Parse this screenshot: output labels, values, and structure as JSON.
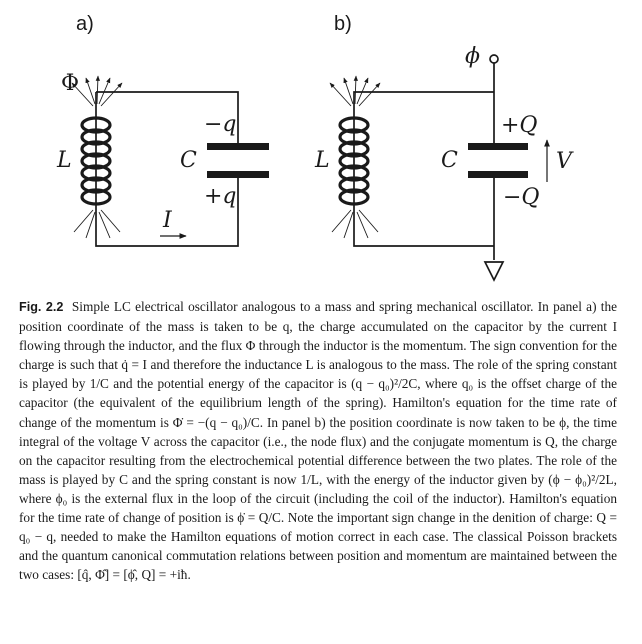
{
  "figure": {
    "panel_a": {
      "label": "a)",
      "flux_symbol": "Φ",
      "inductor_label": "L",
      "capacitor_label": "C",
      "charge_top": "−q",
      "charge_bottom": "+q",
      "current_label": "I"
    },
    "panel_b": {
      "label": "b)",
      "node_label": "ϕ",
      "inductor_label": "L",
      "capacitor_label": "C",
      "charge_top": "+Q",
      "charge_bottom": "−Q",
      "voltage_label": "V"
    }
  },
  "caption": {
    "label": "Fig. 2.2",
    "text": "Simple LC electrical oscillator analogous to a mass and spring mechanical oscillator. In panel a) the position coordinate of the mass is taken to be q, the charge accumulated on the capacitor by the current I flowing through the inductor, and the flux Φ through the inductor is the momentum. The sign convention for the charge is such that q̇ = I and therefore the inductance L is analogous to the mass. The role of the spring constant is played by 1/C and the potential energy of the capacitor is (q − q₀)²/2C, where q₀ is the offset charge of the capacitor (the equivalent of the equilibrium length of the spring). Hamilton's equation for the time rate of change of the momentum is Φ̇ = −(q − q₀)/C. In panel b) the position coordinate is now taken to be ϕ, the time integral of the voltage V across the capacitor (i.e., the node flux) and the conjugate momentum is Q, the charge on the capacitor resulting from the electrochemical potential difference between the two plates. The role of the mass is played by C and the spring constant is now 1/L, with the energy of the inductor given by (ϕ − ϕ₀)²/2L, where ϕ₀ is the external flux in the loop of the circuit (including the coil of the inductor). Hamilton's equation for the time rate of change of position is ϕ̇ = Q/C. Note the important sign change in the denition of charge: Q = q₀ − q, needed to make the Hamilton equations of motion correct in each case. The classical Poisson brackets and the quantum canonical commutation relations between position and momentum are maintained between the two cases: [q̂, Φ̂] = [ϕ̂, Q] = +iħ."
  }
}
